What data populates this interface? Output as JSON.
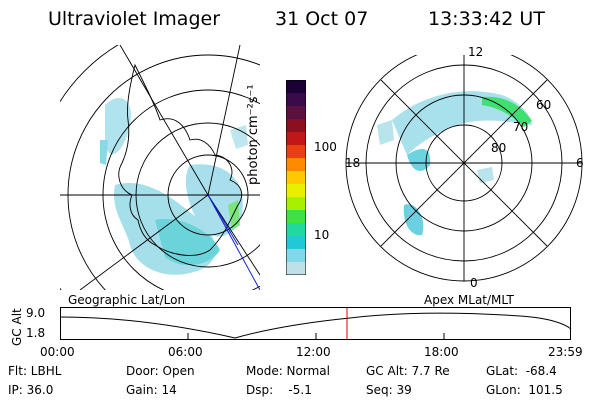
{
  "header": {
    "title": "Ultraviolet Imager",
    "date": "31 Oct 07",
    "time": "13:33:42 UT"
  },
  "colorbar": {
    "unit_label": "photon cm⁻²s⁻¹",
    "ticks": [
      "100",
      "10"
    ],
    "colors": [
      "#1a0033",
      "#3a0a4a",
      "#5a1040",
      "#8a1020",
      "#c01818",
      "#e84010",
      "#ff8a00",
      "#ffc800",
      "#e8f000",
      "#a8f000",
      "#40e040",
      "#20d8a0",
      "#20c8d8",
      "#80d8e8",
      "#c0e0e8"
    ]
  },
  "geographic_panel": {
    "label": "Geographic Lat/Lon"
  },
  "apex_panel": {
    "label": "Apex MLat/MLT",
    "mlt_labels": {
      "top": "12",
      "left": "18",
      "right": "6",
      "bottom": "0"
    },
    "lat_labels": [
      "60",
      "70",
      "80"
    ]
  },
  "altitude_plot": {
    "ylabel": "GC Alt",
    "y_ticks": [
      "9.0",
      "1.8"
    ],
    "x_ticks": [
      "00:00",
      "06:00",
      "12:00",
      "18:00",
      "23:59"
    ],
    "current_time_marker": "13:33:42",
    "marker_color": "#e00000"
  },
  "info": {
    "filter": "Flt: LBHL",
    "ip": "IP: 36.0",
    "door": "Door: Open",
    "gain": "Gain: 14",
    "mode": "Mode: Normal",
    "dsp": "Dsp:    -5.1",
    "gc_alt": "GC Alt: 7.7 Re",
    "seq": "Seq: 39",
    "glat": "GLat:  -68.4",
    "glon": "GLon:  101.5"
  }
}
